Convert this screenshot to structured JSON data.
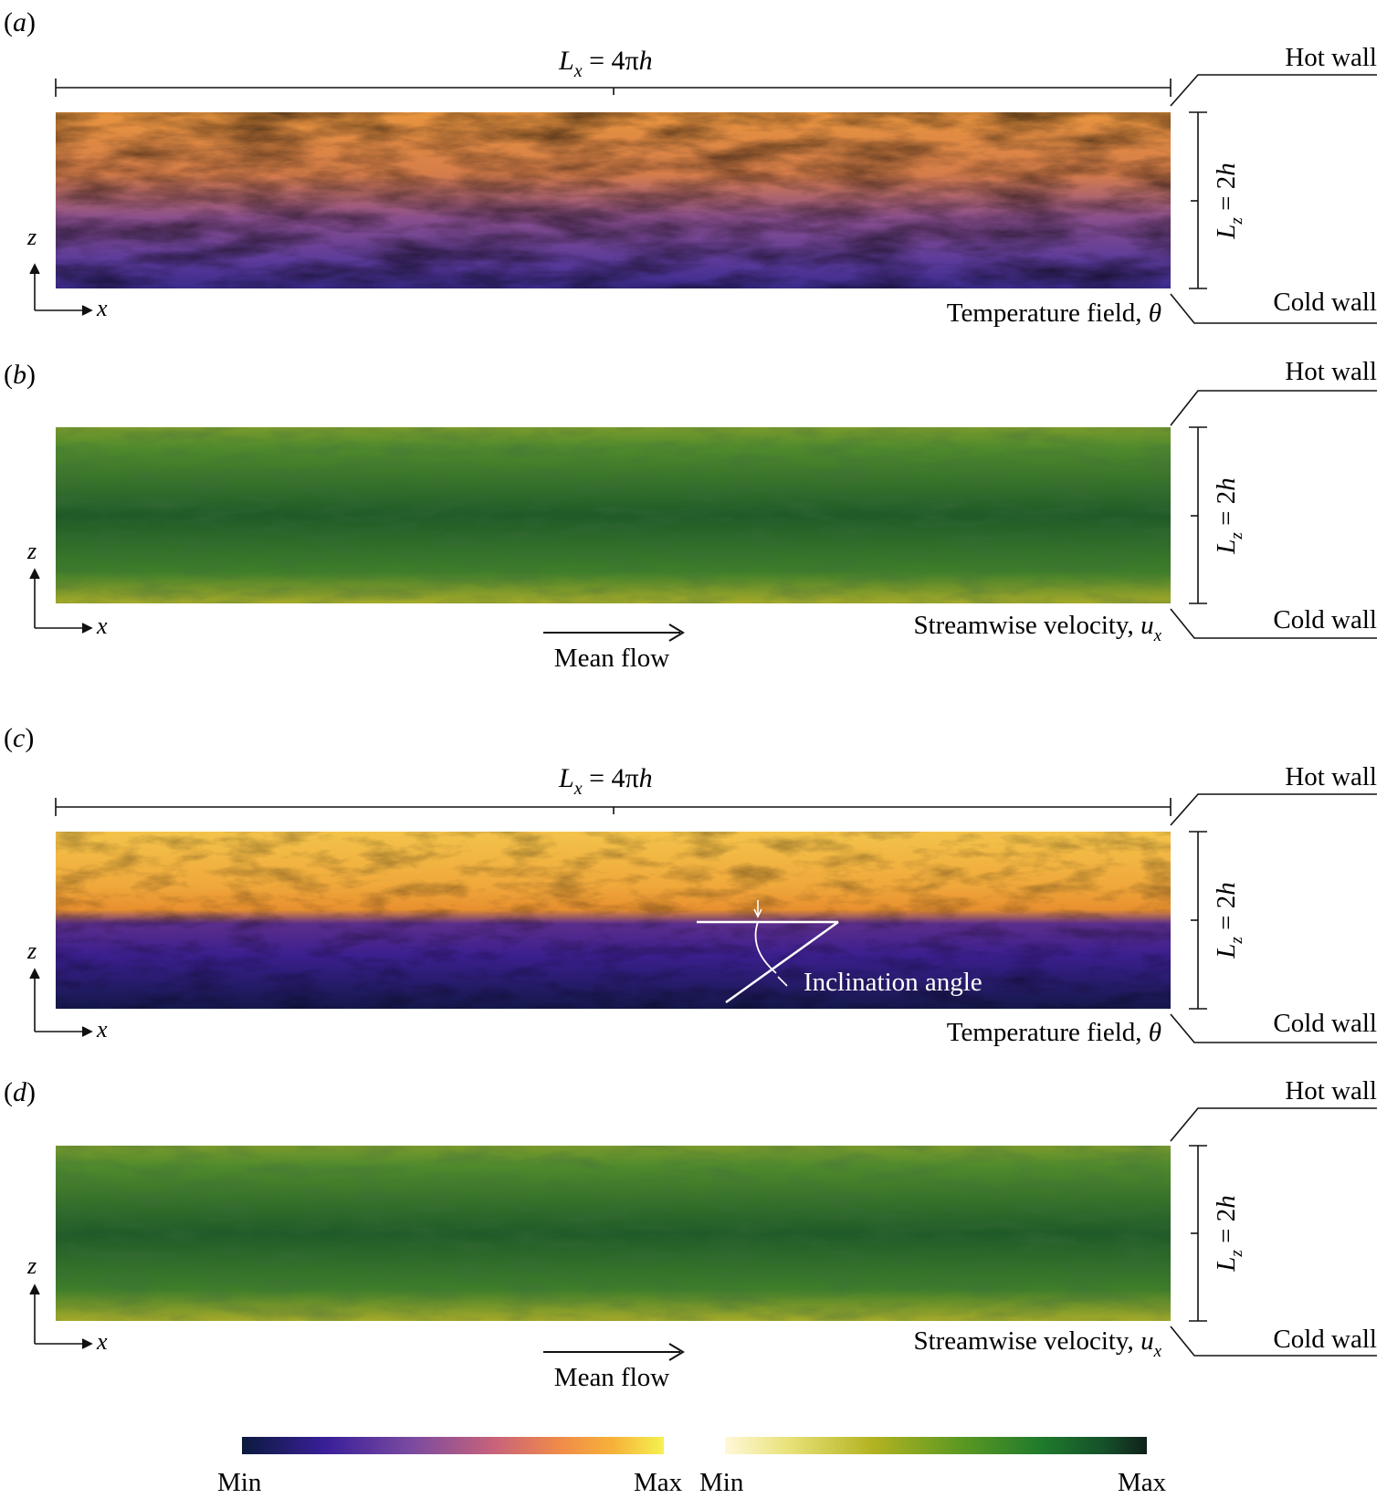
{
  "panels": [
    {
      "id": "a",
      "label": "(a)",
      "field": "temperature",
      "caption": "Temperature field, θ",
      "lx_label": "L_x = 4πh"
    },
    {
      "id": "b",
      "label": "(b)",
      "field": "velocity",
      "caption": "Streamwise velocity, u_x",
      "mean_flow": "Mean flow"
    },
    {
      "id": "c",
      "label": "(c)",
      "field": "temperature-stratified",
      "caption": "Temperature field, θ",
      "lx_label": "L_x = 4πh",
      "annotation": "Inclination angle"
    },
    {
      "id": "d",
      "label": "(d)",
      "field": "velocity",
      "caption": "Streamwise velocity, u_x",
      "mean_flow": "Mean flow"
    }
  ],
  "text": {
    "hot_wall": "Hot wall",
    "cold_wall": "Cold wall",
    "lz": "L_z = 2h",
    "axis_x": "x",
    "axis_z": "z",
    "lx_label": "L_x = 4πh",
    "mean_flow": "Mean flow",
    "inclination": "Inclination angle",
    "caption_temp": "Temperature field, θ",
    "caption_vel": "Streamwise velocity, u_x"
  },
  "colorbars": {
    "temperature": {
      "min_label": "Min",
      "max_label": "Max",
      "colors": [
        "#0b1a3e",
        "#3a1f9a",
        "#7a4aa0",
        "#c8637a",
        "#f08a4a",
        "#f6b23a",
        "#f5f250"
      ]
    },
    "velocity": {
      "min_label": "Min",
      "max_label": "Max",
      "colors": [
        "#fff8d8",
        "#e9e27a",
        "#b3b321",
        "#5f9a22",
        "#1f7a2c",
        "#15502a",
        "#10201a"
      ]
    }
  }
}
